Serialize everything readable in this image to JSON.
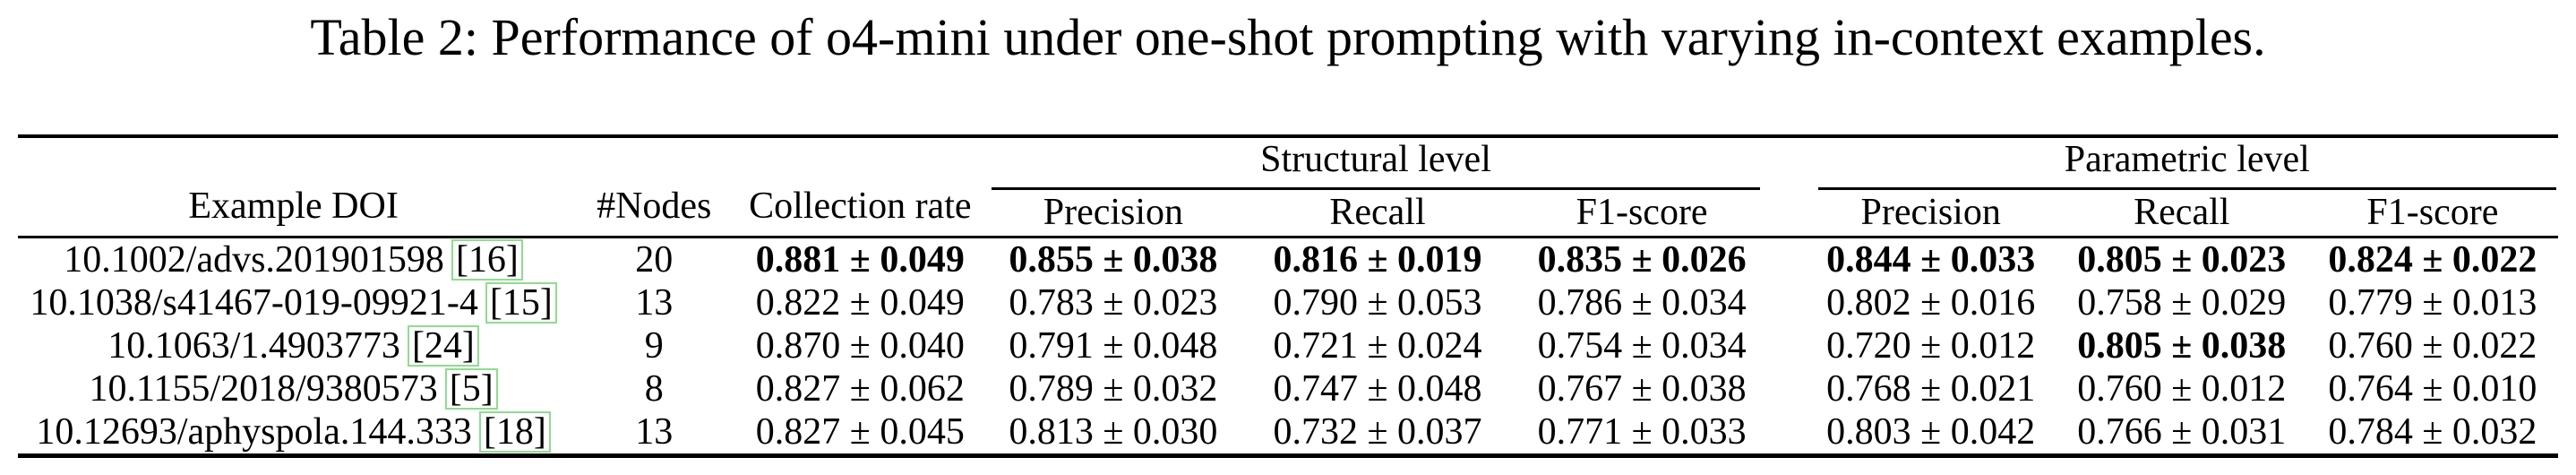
{
  "title": "Table 2: Performance of o4-mini under one-shot prompting with varying in-context examples.",
  "accent_colors": {
    "citation_border": "#8fdc8f",
    "rule": "#000000"
  },
  "table": {
    "group_headers": {
      "structural": "Structural level",
      "parametric": "Parametric level"
    },
    "columns": {
      "example_doi": "Example DOI",
      "nodes": "#Nodes",
      "collection_rate": "Collection rate",
      "precision": "Precision",
      "recall": "Recall",
      "f1": "F1-score"
    },
    "rows": [
      {
        "doi": "10.1002/advs.201901598",
        "cite": "[16]",
        "nodes": "20",
        "collection": "0.881 ± 0.049",
        "s_precision": "0.855 ± 0.038",
        "s_recall": "0.816 ± 0.019",
        "s_f1": "0.835 ± 0.026",
        "p_precision": "0.844 ± 0.033",
        "p_recall": "0.805 ± 0.023",
        "p_f1": "0.824 ± 0.022"
      },
      {
        "doi": "10.1038/s41467-019-09921-4",
        "cite": "[15]",
        "nodes": "13",
        "collection": "0.822 ± 0.049",
        "s_precision": "0.783 ± 0.023",
        "s_recall": "0.790 ± 0.053",
        "s_f1": "0.786 ± 0.034",
        "p_precision": "0.802 ± 0.016",
        "p_recall": "0.758 ± 0.029",
        "p_f1": "0.779 ± 0.013"
      },
      {
        "doi": "10.1063/1.4903773",
        "cite": "[24]",
        "nodes": "9",
        "collection": "0.870 ± 0.040",
        "s_precision": "0.791 ± 0.048",
        "s_recall": "0.721 ± 0.024",
        "s_f1": "0.754 ± 0.034",
        "p_precision": "0.720 ± 0.012",
        "p_recall": "0.805 ± 0.038",
        "p_f1": "0.760 ± 0.022"
      },
      {
        "doi": "10.1155/2018/9380573",
        "cite": "[5]",
        "nodes": "8",
        "collection": "0.827 ± 0.062",
        "s_precision": "0.789 ± 0.032",
        "s_recall": "0.747 ± 0.048",
        "s_f1": "0.767 ± 0.038",
        "p_precision": "0.768 ± 0.021",
        "p_recall": "0.760 ± 0.012",
        "p_f1": "0.764 ± 0.010"
      },
      {
        "doi": "10.12693/aphyspola.144.333",
        "cite": "[18]",
        "nodes": "13",
        "collection": "0.827 ± 0.045",
        "s_precision": "0.813 ± 0.030",
        "s_recall": "0.732 ± 0.037",
        "s_f1": "0.771 ± 0.033",
        "p_precision": "0.803 ± 0.042",
        "p_recall": "0.766 ± 0.031",
        "p_f1": "0.784 ± 0.032"
      }
    ]
  }
}
